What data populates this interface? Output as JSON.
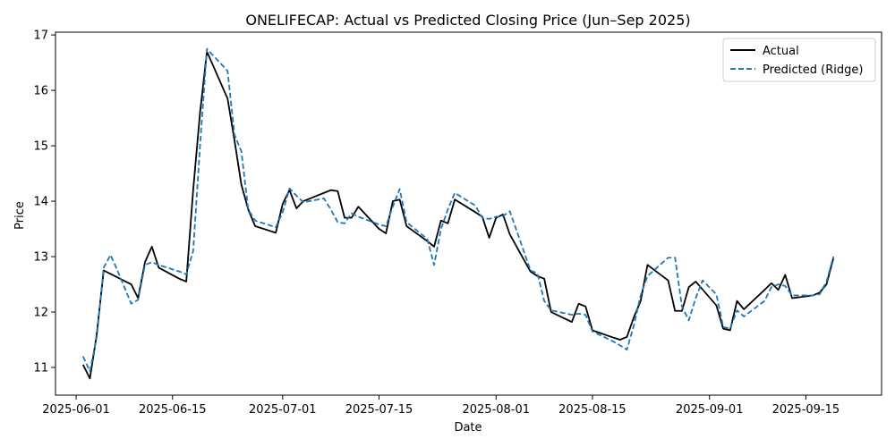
{
  "chart_data": {
    "type": "line",
    "title": "ONELIFECAP: Actual vs Predicted Closing Price (Jun–Sep 2025)",
    "xlabel": "Date",
    "ylabel": "Price",
    "xlim": [
      "2025-05-29",
      "2025-09-26"
    ],
    "ylim": [
      10.5,
      17.05
    ],
    "x_ticks": [
      "2025-06-01",
      "2025-06-15",
      "2025-07-01",
      "2025-07-15",
      "2025-08-01",
      "2025-08-15",
      "2025-09-01",
      "2025-09-15"
    ],
    "y_ticks": [
      11,
      12,
      13,
      14,
      15,
      16,
      17
    ],
    "grid": false,
    "legend_position": "top-right",
    "series": [
      {
        "name": "Actual",
        "color": "#000000",
        "style": "solid",
        "points": [
          [
            "2025-06-02",
            11.05
          ],
          [
            "2025-06-03",
            10.8
          ],
          [
            "2025-06-04",
            11.6
          ],
          [
            "2025-06-05",
            12.75
          ],
          [
            "2025-06-09",
            12.5
          ],
          [
            "2025-06-10",
            12.25
          ],
          [
            "2025-06-11",
            12.9
          ],
          [
            "2025-06-12",
            13.18
          ],
          [
            "2025-06-13",
            12.8
          ],
          [
            "2025-06-16",
            12.6
          ],
          [
            "2025-06-17",
            12.55
          ],
          [
            "2025-06-18",
            14.2
          ],
          [
            "2025-06-19",
            15.6
          ],
          [
            "2025-06-20",
            16.7
          ],
          [
            "2025-06-23",
            15.85
          ],
          [
            "2025-06-24",
            15.1
          ],
          [
            "2025-06-25",
            14.3
          ],
          [
            "2025-06-26",
            13.85
          ],
          [
            "2025-06-27",
            13.55
          ],
          [
            "2025-06-30",
            13.43
          ],
          [
            "2025-07-01",
            13.95
          ],
          [
            "2025-07-02",
            14.2
          ],
          [
            "2025-07-03",
            13.87
          ],
          [
            "2025-07-04",
            14.0
          ],
          [
            "2025-07-07",
            14.15
          ],
          [
            "2025-07-08",
            14.2
          ],
          [
            "2025-07-09",
            14.18
          ],
          [
            "2025-07-10",
            13.7
          ],
          [
            "2025-07-11",
            13.7
          ],
          [
            "2025-07-12",
            13.9
          ],
          [
            "2025-07-15",
            13.5
          ],
          [
            "2025-07-16",
            13.42
          ],
          [
            "2025-07-17",
            14.0
          ],
          [
            "2025-07-18",
            14.03
          ],
          [
            "2025-07-19",
            13.55
          ],
          [
            "2025-07-22",
            13.28
          ],
          [
            "2025-07-23",
            13.18
          ],
          [
            "2025-07-24",
            13.65
          ],
          [
            "2025-07-25",
            13.6
          ],
          [
            "2025-07-26",
            14.03
          ],
          [
            "2025-07-29",
            13.8
          ],
          [
            "2025-07-30",
            13.72
          ],
          [
            "2025-07-31",
            13.34
          ],
          [
            "2025-08-01",
            13.7
          ],
          [
            "2025-08-02",
            13.76
          ],
          [
            "2025-08-03",
            13.4
          ],
          [
            "2025-08-06",
            12.73
          ],
          [
            "2025-08-07",
            12.65
          ],
          [
            "2025-08-08",
            12.6
          ],
          [
            "2025-08-09",
            12.0
          ],
          [
            "2025-08-12",
            11.82
          ],
          [
            "2025-08-13",
            12.15
          ],
          [
            "2025-08-14",
            12.1
          ],
          [
            "2025-08-15",
            11.67
          ],
          [
            "2025-08-18",
            11.54
          ],
          [
            "2025-08-19",
            11.5
          ],
          [
            "2025-08-20",
            11.55
          ],
          [
            "2025-08-21",
            11.9
          ],
          [
            "2025-08-22",
            12.2
          ],
          [
            "2025-08-23",
            12.85
          ],
          [
            "2025-08-26",
            12.57
          ],
          [
            "2025-08-27",
            12.02
          ],
          [
            "2025-08-28",
            12.02
          ],
          [
            "2025-08-29",
            12.45
          ],
          [
            "2025-08-30",
            12.55
          ],
          [
            "2025-09-02",
            12.12
          ],
          [
            "2025-09-03",
            11.7
          ],
          [
            "2025-09-04",
            11.67
          ],
          [
            "2025-09-05",
            12.2
          ],
          [
            "2025-09-06",
            12.05
          ],
          [
            "2025-09-09",
            12.4
          ],
          [
            "2025-09-10",
            12.52
          ],
          [
            "2025-09-11",
            12.4
          ],
          [
            "2025-09-12",
            12.67
          ],
          [
            "2025-09-13",
            12.25
          ],
          [
            "2025-09-16",
            12.3
          ],
          [
            "2025-09-17",
            12.35
          ],
          [
            "2025-09-18",
            12.5
          ],
          [
            "2025-09-19",
            12.97
          ]
        ]
      },
      {
        "name": "Predicted (Ridge)",
        "color": "#1f77b4",
        "style": "dashed",
        "points": [
          [
            "2025-06-02",
            11.2
          ],
          [
            "2025-06-03",
            10.93
          ],
          [
            "2025-06-04",
            11.55
          ],
          [
            "2025-06-05",
            12.8
          ],
          [
            "2025-06-06",
            13.03
          ],
          [
            "2025-06-07",
            12.75
          ],
          [
            "2025-06-08",
            12.45
          ],
          [
            "2025-06-09",
            12.15
          ],
          [
            "2025-06-10",
            12.22
          ],
          [
            "2025-06-11",
            12.85
          ],
          [
            "2025-06-12",
            12.9
          ],
          [
            "2025-06-13",
            12.85
          ],
          [
            "2025-06-16",
            12.73
          ],
          [
            "2025-06-17",
            12.68
          ],
          [
            "2025-06-18",
            13.1
          ],
          [
            "2025-06-19",
            15.0
          ],
          [
            "2025-06-20",
            16.75
          ],
          [
            "2025-06-23",
            16.35
          ],
          [
            "2025-06-24",
            15.2
          ],
          [
            "2025-06-25",
            14.9
          ],
          [
            "2025-06-26",
            13.85
          ],
          [
            "2025-06-27",
            13.65
          ],
          [
            "2025-06-30",
            13.53
          ],
          [
            "2025-07-01",
            13.8
          ],
          [
            "2025-07-02",
            14.23
          ],
          [
            "2025-07-03",
            14.1
          ],
          [
            "2025-07-04",
            13.98
          ],
          [
            "2025-07-07",
            14.05
          ],
          [
            "2025-07-08",
            13.85
          ],
          [
            "2025-07-09",
            13.62
          ],
          [
            "2025-07-10",
            13.6
          ],
          [
            "2025-07-11",
            13.78
          ],
          [
            "2025-07-12",
            13.72
          ],
          [
            "2025-07-15",
            13.58
          ],
          [
            "2025-07-16",
            13.55
          ],
          [
            "2025-07-17",
            13.9
          ],
          [
            "2025-07-18",
            14.22
          ],
          [
            "2025-07-19",
            13.62
          ],
          [
            "2025-07-22",
            13.32
          ],
          [
            "2025-07-23",
            12.85
          ],
          [
            "2025-07-24",
            13.5
          ],
          [
            "2025-07-25",
            13.85
          ],
          [
            "2025-07-26",
            14.15
          ],
          [
            "2025-07-29",
            13.92
          ],
          [
            "2025-07-30",
            13.7
          ],
          [
            "2025-07-31",
            13.68
          ],
          [
            "2025-08-01",
            13.72
          ],
          [
            "2025-08-02",
            13.73
          ],
          [
            "2025-08-03",
            13.82
          ],
          [
            "2025-08-06",
            12.75
          ],
          [
            "2025-08-07",
            12.7
          ],
          [
            "2025-08-08",
            12.2
          ],
          [
            "2025-08-09",
            12.03
          ],
          [
            "2025-08-12",
            11.95
          ],
          [
            "2025-08-13",
            11.97
          ],
          [
            "2025-08-14",
            11.95
          ],
          [
            "2025-08-15",
            11.65
          ],
          [
            "2025-08-18",
            11.47
          ],
          [
            "2025-08-19",
            11.4
          ],
          [
            "2025-08-20",
            11.32
          ],
          [
            "2025-08-21",
            11.75
          ],
          [
            "2025-08-22",
            12.3
          ],
          [
            "2025-08-23",
            12.65
          ],
          [
            "2025-08-26",
            12.98
          ],
          [
            "2025-08-27",
            12.98
          ],
          [
            "2025-08-28",
            12.1
          ],
          [
            "2025-08-29",
            11.85
          ],
          [
            "2025-08-30",
            12.25
          ],
          [
            "2025-08-31",
            12.57
          ],
          [
            "2025-09-02",
            12.32
          ],
          [
            "2025-09-03",
            11.73
          ],
          [
            "2025-09-04",
            11.7
          ],
          [
            "2025-09-05",
            12.03
          ],
          [
            "2025-09-06",
            11.92
          ],
          [
            "2025-09-09",
            12.2
          ],
          [
            "2025-09-10",
            12.45
          ],
          [
            "2025-09-11",
            12.5
          ],
          [
            "2025-09-12",
            12.47
          ],
          [
            "2025-09-13",
            12.3
          ],
          [
            "2025-09-16",
            12.3
          ],
          [
            "2025-09-17",
            12.32
          ],
          [
            "2025-09-18",
            12.55
          ],
          [
            "2025-09-19",
            13.0
          ]
        ]
      }
    ]
  }
}
